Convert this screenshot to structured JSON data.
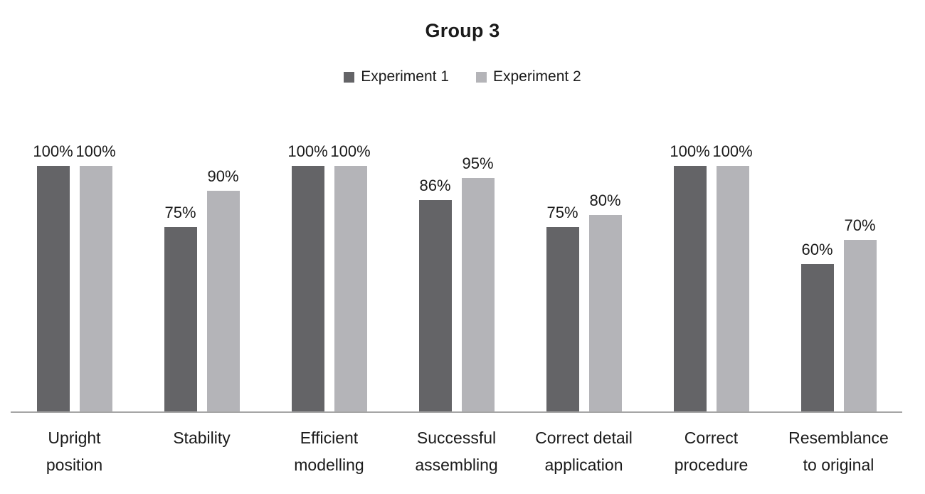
{
  "chart_data": {
    "type": "bar",
    "title": "Group 3",
    "categories": [
      "Upright\nposition",
      "Stability",
      "Efficient\nmodelling",
      "Successful\nassembling",
      "Correct detail\napplication",
      "Correct\nprocedure",
      "Resemblance\nto original"
    ],
    "series": [
      {
        "name": "Experiment 1",
        "color": "#646467",
        "values": [
          100,
          75,
          100,
          86,
          75,
          100,
          60
        ]
      },
      {
        "name": "Experiment 2",
        "color": "#b4b4b8",
        "values": [
          100,
          90,
          100,
          95,
          80,
          100,
          70
        ]
      }
    ],
    "value_suffix": "%",
    "ylim": [
      0,
      100
    ],
    "grid": false,
    "legend_position": "top",
    "axis_line_color": "#a6a6a6",
    "value_labels_shown": true
  }
}
